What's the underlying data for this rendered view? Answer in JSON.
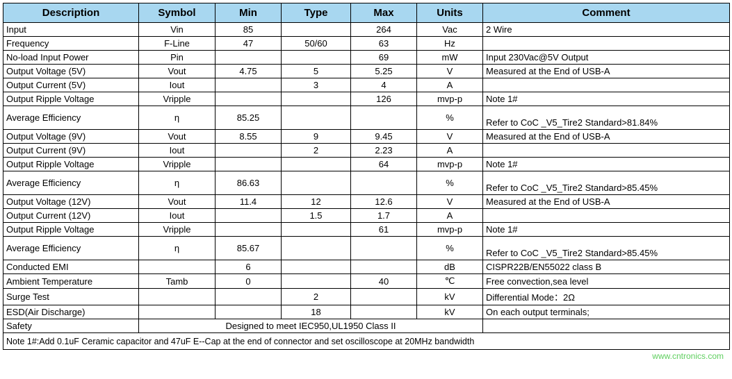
{
  "header_bg": "#a8d7f0",
  "columns": {
    "description": "Description",
    "symbol": "Symbol",
    "min": "Min",
    "type": "Type",
    "max": "Max",
    "units": "Units",
    "comment": "Comment"
  },
  "col_widths": {
    "description": 195,
    "symbol": 110,
    "min": 95,
    "type": 100,
    "max": 95,
    "units": 95,
    "comment": 355
  },
  "rows": [
    {
      "desc": "Input",
      "sym": "Vin",
      "min": "85",
      "type": "",
      "max": "264",
      "units": "Vac",
      "comment": "2 Wire",
      "tall": false
    },
    {
      "desc": "Frequency",
      "sym": "F-Line",
      "min": "47",
      "type": "50/60",
      "max": "63",
      "units": "Hz",
      "comment": "",
      "tall": false
    },
    {
      "desc": "No-load Input Power",
      "sym": "Pin",
      "min": "",
      "type": "",
      "max": "69",
      "units": "mW",
      "comment": "Input 230Vac@5V Output",
      "tall": false
    },
    {
      "desc": "Output Voltage (5V)",
      "sym": "Vout",
      "min": "4.75",
      "type": "5",
      "max": "5.25",
      "units": "V",
      "comment": "Measured at the End of USB-A",
      "tall": false
    },
    {
      "desc": "Output Current (5V)",
      "sym": "Iout",
      "min": "",
      "type": "3",
      "max": "4",
      "units": "A",
      "comment": "",
      "tall": false
    },
    {
      "desc": "Output Ripple Voltage",
      "sym": "Vripple",
      "min": "",
      "type": "",
      "max": "126",
      "units": "mvp-p",
      "comment": "Note 1#",
      "tall": false
    },
    {
      "desc": "Average Efficiency",
      "sym": "η",
      "min": "85.25",
      "type": "",
      "max": "",
      "units": "%",
      "comment": "Refer to CoC _V5_Tire2 Standard>81.84%",
      "tall": true
    },
    {
      "desc": "Output Voltage (9V)",
      "sym": "Vout",
      "min": "8.55",
      "type": "9",
      "max": "9.45",
      "units": "V",
      "comment": "Measured at the End of USB-A",
      "tall": false
    },
    {
      "desc": "Output Current (9V)",
      "sym": "Iout",
      "min": "",
      "type": "2",
      "max": "2.23",
      "units": "A",
      "comment": "",
      "tall": false
    },
    {
      "desc": "Output Ripple Voltage",
      "sym": "Vripple",
      "min": "",
      "type": "",
      "max": "64",
      "units": "mvp-p",
      "comment": "Note 1#",
      "tall": false
    },
    {
      "desc": "Average Efficiency",
      "sym": "η",
      "min": "86.63",
      "type": "",
      "max": "",
      "units": "%",
      "comment": "Refer to CoC _V5_Tire2 Standard>85.45%",
      "tall": true
    },
    {
      "desc": "Output Voltage (12V)",
      "sym": "Vout",
      "min": "11.4",
      "type": "12",
      "max": "12.6",
      "units": "V",
      "comment": "Measured at the End of USB-A",
      "tall": false
    },
    {
      "desc": "Output Current (12V)",
      "sym": "Iout",
      "min": "",
      "type": "1.5",
      "max": "1.7",
      "units": "A",
      "comment": "",
      "tall": false
    },
    {
      "desc": "Output Ripple Voltage",
      "sym": "Vripple",
      "min": "",
      "type": "",
      "max": "61",
      "units": "mvp-p",
      "comment": "Note 1#",
      "tall": false
    },
    {
      "desc": "Average Efficiency",
      "sym": "η",
      "min": "85.67",
      "type": "",
      "max": "",
      "units": "%",
      "comment": "Refer to CoC _V5_Tire2 Standard>85.45%",
      "tall": true
    },
    {
      "desc": "Conducted EMI",
      "sym": "",
      "min": "6",
      "type": "",
      "max": "",
      "units": "dB",
      "comment": "CISPR22B/EN55022 class B",
      "tall": false
    },
    {
      "desc": "Ambient Temperature",
      "sym": "Tamb",
      "min": "0",
      "type": "",
      "max": "40",
      "units": "℃",
      "comment": "Free convection,sea level",
      "tall": false
    },
    {
      "desc": "Surge Test",
      "sym": "",
      "min": "",
      "type": "2",
      "max": "",
      "units": "kV",
      "comment": "Differential Mode：2Ω",
      "tall": false
    },
    {
      "desc": "ESD(Air Discharge)",
      "sym": "",
      "min": "",
      "type": "18",
      "max": "",
      "units": "kV",
      "comment": "On each output terminals;",
      "tall": false
    }
  ],
  "safety": {
    "label": "Safety",
    "text": "Designed to meet IEC950,UL1950 Class II"
  },
  "footnote": "Note 1#:Add 0.1uF Ceramic capacitor and 47uF E--Cap at the end of connector and set oscilloscope at 20MHz bandwidth",
  "watermark": "www.cntronics.com"
}
